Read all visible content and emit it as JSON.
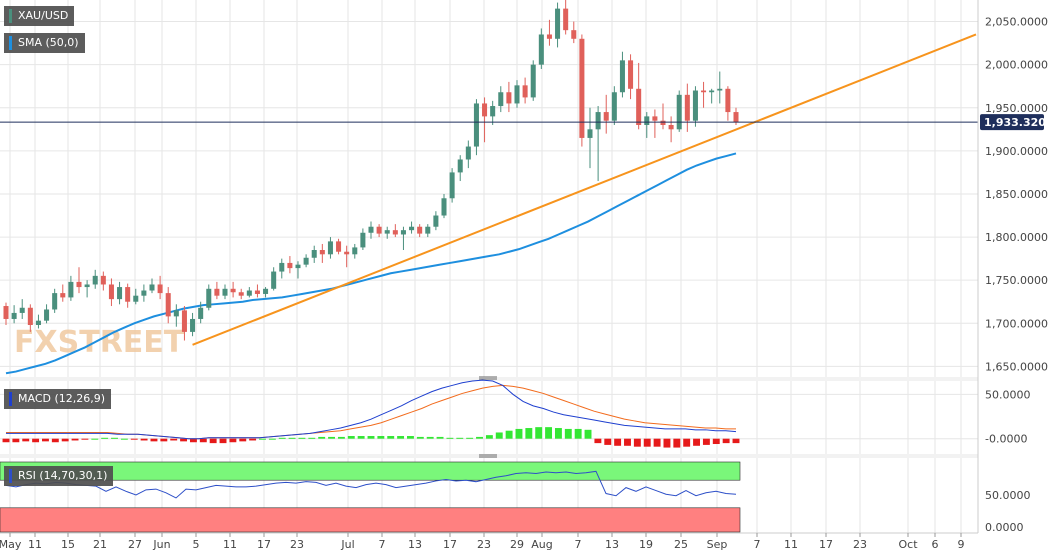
{
  "colors": {
    "up": "#4a8f7d",
    "down": "#e0605a",
    "sma": "#1e8fdf",
    "trendline": "#f7941d",
    "price_line": "#1f2f5c",
    "macd_line": "#1e3fcf",
    "signal_line": "#f26b1d",
    "hist_pos": "#33e633",
    "hist_neg": "#e61a1a",
    "rsi_line": "#2d4fc8",
    "rsi_over": "#7af77a",
    "rsi_under": "#ff8080",
    "grid": "#e6e6e6",
    "axis_text": "#444444"
  },
  "labels": {
    "symbol": "XAU/USD",
    "sma": "SMA (50,0)",
    "macd": "MACD (12,26,9)",
    "rsi": "RSI (14,70,30,1)",
    "last_price": "1,933.3200",
    "watermark": "FXSTREET"
  },
  "chart_data": [
    {
      "type": "candlestick",
      "title": "XAU/USD",
      "ylim": [
        1640,
        2075
      ],
      "y_ticks": [
        "2,050.0000",
        "2,000.0000",
        "1,950.0000",
        "1,900.0000",
        "1,850.0000",
        "1,800.0000",
        "1,750.0000",
        "1,700.0000",
        "1,650.0000"
      ],
      "x_ticks": [
        "May",
        "11",
        "15",
        "21",
        "27",
        "Jun",
        "5",
        "11",
        "17",
        "23",
        "Jul",
        "7",
        "13",
        "17",
        "23",
        "29",
        "Aug",
        "7",
        "13",
        "19",
        "25",
        "Sep",
        "7",
        "11",
        "17",
        "23",
        "Oct",
        "6",
        "9"
      ],
      "last_price": 1933.32,
      "candles": [
        [
          1720,
          1724,
          1698,
          1705
        ],
        [
          1705,
          1721,
          1700,
          1712
        ],
        [
          1712,
          1728,
          1705,
          1718
        ],
        [
          1718,
          1722,
          1690,
          1698
        ],
        [
          1698,
          1710,
          1694,
          1703
        ],
        [
          1703,
          1722,
          1700,
          1716
        ],
        [
          1716,
          1740,
          1712,
          1735
        ],
        [
          1735,
          1745,
          1725,
          1730
        ],
        [
          1730,
          1755,
          1726,
          1748
        ],
        [
          1748,
          1765,
          1735,
          1742
        ],
        [
          1742,
          1750,
          1730,
          1745
        ],
        [
          1745,
          1762,
          1740,
          1755
        ],
        [
          1755,
          1760,
          1738,
          1745
        ],
        [
          1745,
          1752,
          1720,
          1728
        ],
        [
          1728,
          1748,
          1722,
          1742
        ],
        [
          1742,
          1746,
          1718,
          1725
        ],
        [
          1725,
          1740,
          1722,
          1732
        ],
        [
          1732,
          1745,
          1725,
          1738
        ],
        [
          1738,
          1752,
          1735,
          1745
        ],
        [
          1745,
          1755,
          1728,
          1735
        ],
        [
          1735,
          1742,
          1700,
          1708
        ],
        [
          1708,
          1722,
          1696,
          1715
        ],
        [
          1715,
          1720,
          1680,
          1690
        ],
        [
          1690,
          1712,
          1685,
          1705
        ],
        [
          1705,
          1725,
          1700,
          1718
        ],
        [
          1718,
          1745,
          1715,
          1740
        ],
        [
          1740,
          1748,
          1728,
          1732
        ],
        [
          1732,
          1745,
          1728,
          1740
        ],
        [
          1740,
          1748,
          1730,
          1736
        ],
        [
          1736,
          1740,
          1728,
          1732
        ],
        [
          1732,
          1742,
          1730,
          1738
        ],
        [
          1738,
          1745,
          1730,
          1734
        ],
        [
          1734,
          1742,
          1730,
          1740
        ],
        [
          1740,
          1765,
          1738,
          1760
        ],
        [
          1760,
          1775,
          1752,
          1770
        ],
        [
          1770,
          1778,
          1758,
          1764
        ],
        [
          1764,
          1772,
          1752,
          1768
        ],
        [
          1768,
          1780,
          1765,
          1776
        ],
        [
          1776,
          1790,
          1770,
          1785
        ],
        [
          1785,
          1792,
          1770,
          1780
        ],
        [
          1780,
          1800,
          1775,
          1795
        ],
        [
          1795,
          1798,
          1780,
          1783
        ],
        [
          1783,
          1790,
          1765,
          1780
        ],
        [
          1780,
          1792,
          1775,
          1788
        ],
        [
          1788,
          1810,
          1785,
          1805
        ],
        [
          1805,
          1818,
          1798,
          1812
        ],
        [
          1812,
          1815,
          1800,
          1804
        ],
        [
          1804,
          1812,
          1798,
          1808
        ],
        [
          1808,
          1815,
          1800,
          1803
        ],
        [
          1803,
          1812,
          1785,
          1808
        ],
        [
          1808,
          1818,
          1804,
          1812
        ],
        [
          1812,
          1815,
          1800,
          1804
        ],
        [
          1804,
          1815,
          1800,
          1812
        ],
        [
          1812,
          1830,
          1808,
          1825
        ],
        [
          1825,
          1850,
          1822,
          1845
        ],
        [
          1845,
          1880,
          1840,
          1875
        ],
        [
          1875,
          1895,
          1865,
          1890
        ],
        [
          1890,
          1912,
          1880,
          1905
        ],
        [
          1905,
          1960,
          1895,
          1955
        ],
        [
          1955,
          1962,
          1910,
          1940
        ],
        [
          1940,
          1958,
          1930,
          1952
        ],
        [
          1952,
          1975,
          1945,
          1968
        ],
        [
          1968,
          1980,
          1945,
          1955
        ],
        [
          1955,
          1982,
          1950,
          1976
        ],
        [
          1976,
          1985,
          1955,
          1962
        ],
        [
          1962,
          2005,
          1958,
          2000
        ],
        [
          2000,
          2042,
          1995,
          2035
        ],
        [
          2035,
          2052,
          2022,
          2030
        ],
        [
          2030,
          2072,
          2020,
          2065
        ],
        [
          2065,
          2075,
          2035,
          2040
        ],
        [
          2040,
          2050,
          2025,
          2030
        ],
        [
          2030,
          2035,
          1905,
          1915
        ],
        [
          1915,
          1950,
          1880,
          1925
        ],
        [
          1925,
          1952,
          1865,
          1945
        ],
        [
          1945,
          1965,
          1920,
          1935
        ],
        [
          1935,
          1975,
          1930,
          1968
        ],
        [
          1968,
          2015,
          1962,
          2005
        ],
        [
          2005,
          2012,
          1960,
          1972
        ],
        [
          1972,
          2002,
          1925,
          1930
        ],
        [
          1930,
          1945,
          1915,
          1940
        ],
        [
          1940,
          1948,
          1915,
          1935
        ],
        [
          1935,
          1955,
          1925,
          1930
        ],
        [
          1930,
          1940,
          1910,
          1925
        ],
        [
          1925,
          1970,
          1922,
          1965
        ],
        [
          1965,
          1978,
          1922,
          1935
        ],
        [
          1935,
          1975,
          1928,
          1970
        ],
        [
          1970,
          1980,
          1950,
          1968
        ],
        [
          1968,
          1972,
          1955,
          1970
        ],
        [
          1970,
          1992,
          1955,
          1972
        ],
        [
          1972,
          1975,
          1935,
          1945
        ],
        [
          1945,
          1950,
          1930,
          1933.32
        ]
      ],
      "sma_50": [
        1642,
        1644,
        1647,
        1650,
        1653,
        1657,
        1662,
        1667,
        1672,
        1678,
        1684,
        1690,
        1695,
        1700,
        1704,
        1708,
        1711,
        1714,
        1717,
        1719,
        1721,
        1722,
        1723,
        1724,
        1725,
        1727,
        1728,
        1729,
        1730,
        1732,
        1734,
        1736,
        1738,
        1740,
        1743,
        1746,
        1749,
        1752,
        1755,
        1758,
        1760,
        1762,
        1764,
        1766,
        1768,
        1770,
        1772,
        1774,
        1776,
        1778,
        1780,
        1783,
        1786,
        1790,
        1794,
        1798,
        1803,
        1808,
        1813,
        1818,
        1824,
        1830,
        1836,
        1842,
        1848,
        1854,
        1860,
        1866,
        1872,
        1878,
        1883,
        1887,
        1891,
        1894,
        1897
      ],
      "trendline": {
        "x": [
          0,
          1
        ],
        "y": [
          1675,
          2035
        ]
      }
    },
    {
      "type": "macd",
      "title": "MACD (12,26,9)",
      "ylim": [
        -15,
        65
      ],
      "y_ticks": [
        "50.0000",
        "-0.0000"
      ],
      "macd": [
        6,
        6,
        6,
        6,
        6,
        6,
        6,
        6,
        6,
        6,
        6,
        5,
        5,
        5,
        4,
        3,
        2,
        1,
        0,
        0,
        1,
        1,
        1,
        1,
        1,
        1,
        2,
        3,
        4,
        5,
        6,
        8,
        10,
        12,
        15,
        18,
        22,
        27,
        32,
        37,
        43,
        48,
        53,
        57,
        60,
        63,
        65,
        66,
        65,
        60,
        50,
        42,
        37,
        34,
        30,
        27,
        25,
        23,
        21,
        19,
        17,
        15,
        14,
        13,
        12,
        11,
        11,
        11,
        10,
        10,
        9,
        9,
        8
      ],
      "signal": [
        7,
        7,
        7,
        7,
        7,
        7,
        7,
        7,
        7,
        7,
        7,
        6,
        5,
        5,
        4,
        3,
        2,
        1,
        0,
        0,
        1,
        1,
        1,
        1,
        1,
        1,
        2,
        3,
        4,
        5,
        6,
        7,
        8,
        9,
        11,
        13,
        15,
        18,
        22,
        26,
        30,
        34,
        39,
        43,
        47,
        51,
        54,
        57,
        59,
        60,
        59,
        57,
        54,
        51,
        47,
        43,
        39,
        35,
        31,
        28,
        25,
        22,
        20,
        18,
        17,
        16,
        15,
        14,
        13,
        12,
        12,
        11,
        11
      ],
      "hist": [
        -4,
        -4,
        -3,
        -4,
        -3,
        -4,
        -3,
        -2,
        -1,
        0,
        1,
        1,
        0,
        -1,
        -2,
        -3,
        -3,
        -2,
        -3,
        -4,
        -4,
        -5,
        -5,
        -4,
        -3,
        -2,
        0,
        0,
        1,
        1,
        1,
        1,
        2,
        2,
        2,
        3,
        3,
        3,
        3,
        3,
        3,
        3,
        2,
        2,
        2,
        1,
        1,
        1,
        2,
        4,
        7,
        9,
        11,
        12,
        13,
        13,
        12,
        11,
        11,
        10,
        -5,
        -7,
        -8,
        -8,
        -9,
        -9,
        -9,
        -10,
        -10,
        -9,
        -8,
        -7,
        -6,
        -5,
        -5
      ]
    },
    {
      "type": "rsi",
      "title": "RSI (14,70,30,1)",
      "ylim": [
        0,
        100
      ],
      "y_ticks": [
        "50.0000",
        "0.0000"
      ],
      "levels": [
        70,
        30
      ],
      "values": [
        63,
        61,
        64,
        66,
        65,
        67,
        66,
        64,
        63,
        62,
        55,
        61,
        55,
        50,
        57,
        58,
        53,
        46,
        58,
        57,
        60,
        63,
        62,
        61,
        61,
        62,
        64,
        66,
        67,
        66,
        68,
        67,
        63,
        66,
        62,
        60,
        64,
        66,
        64,
        60,
        62,
        64,
        66,
        69,
        71,
        69,
        70,
        68,
        71,
        74,
        76,
        79,
        80,
        79,
        81,
        80,
        81,
        79,
        80,
        82,
        52,
        49,
        60,
        55,
        61,
        56,
        51,
        49,
        56,
        49,
        53,
        55,
        52,
        51
      ]
    }
  ]
}
